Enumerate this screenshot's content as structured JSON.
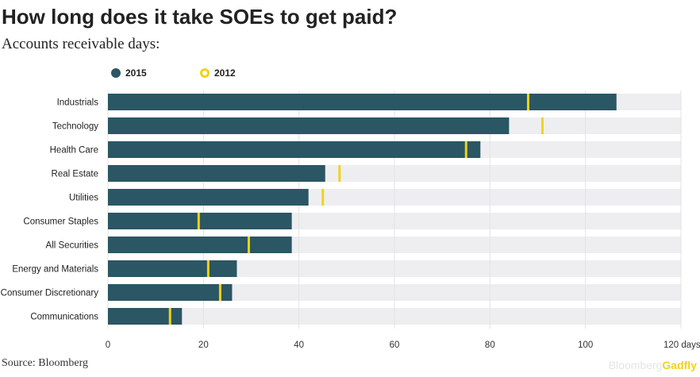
{
  "chart_data": {
    "type": "bar",
    "orientation": "horizontal",
    "title": "How long does it take SOEs to get paid?",
    "subtitle": "Accounts receivable days:",
    "categories": [
      "Industrials",
      "Technology",
      "Health Care",
      "Real Estate",
      "Utilities",
      "Consumer Staples",
      "All Securities",
      "Energy and Materials",
      "Consumer Discretionary",
      "Communications"
    ],
    "series": [
      {
        "name": "2015",
        "values": [
          106.5,
          84,
          78,
          45.5,
          42,
          38.5,
          38.5,
          27,
          26,
          15.5
        ],
        "color": "#2b5664",
        "mark": "bar"
      },
      {
        "name": "2012",
        "values": [
          88,
          91,
          75,
          48.5,
          45,
          19,
          29.5,
          21,
          23.5,
          13
        ],
        "color": "#f2d21a",
        "mark": "tick"
      }
    ],
    "xlim": [
      0,
      120
    ],
    "xticks": [
      0,
      20,
      40,
      60,
      80,
      100,
      120
    ],
    "xtick_labels": [
      "0",
      "20",
      "40",
      "60",
      "80",
      "100",
      "120 days"
    ],
    "track_color": "#eeeef1",
    "grid": true,
    "legend_position": "top-left"
  },
  "footer": {
    "source": "Source: Bloomberg",
    "brand_part1": "Bloomberg",
    "brand_part2": "Gadfly"
  }
}
